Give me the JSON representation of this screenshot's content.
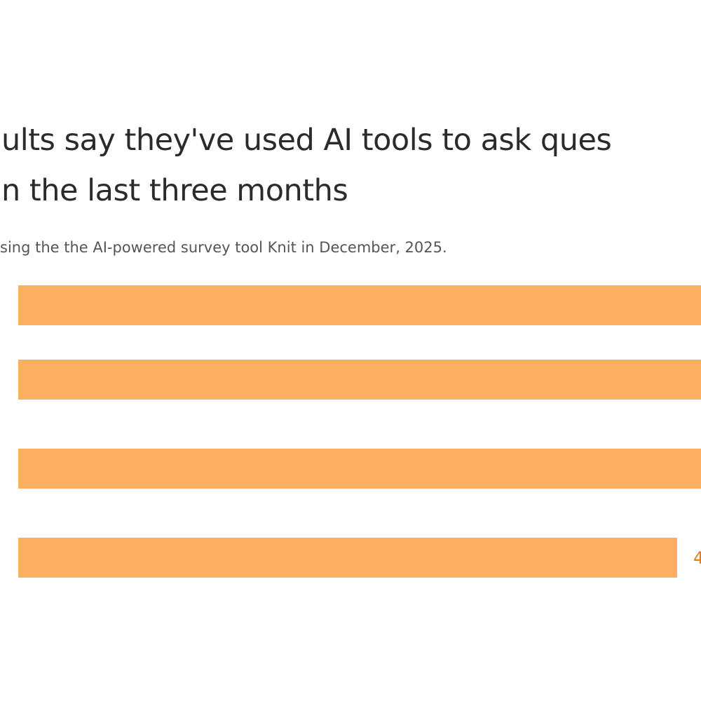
{
  "header": {
    "title_lines": [
      "ults say they've used AI tools to ask ques",
      "n the last three months"
    ],
    "subtitle": "sing the the AI-powered survey tool Knit in December, 2025."
  },
  "chart": {
    "last_bar_label": "4"
  }
}
